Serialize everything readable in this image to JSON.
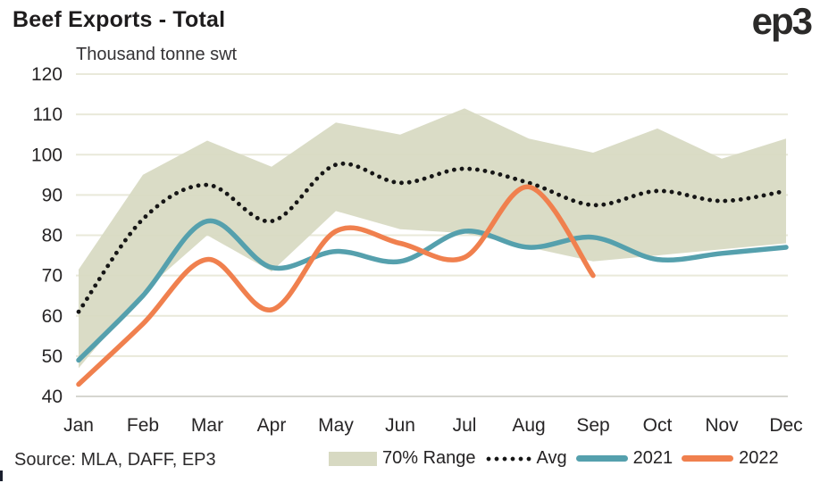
{
  "header": {
    "title": "Beef Exports - Total",
    "logo": "ep3"
  },
  "footer": {
    "source": "Source: MLA, DAFF, EP3"
  },
  "chart_data": {
    "type": "line",
    "title": "Beef Exports - Total",
    "unit_label": "Thousand tonne swt",
    "categories": [
      "Jan",
      "Feb",
      "Mar",
      "Apr",
      "May",
      "Jun",
      "Jul",
      "Aug",
      "Sep",
      "Oct",
      "Nov",
      "Dec"
    ],
    "ylim": [
      40,
      120
    ],
    "yticks": [
      40,
      50,
      60,
      70,
      80,
      90,
      100,
      110,
      120
    ],
    "grid": "horizontal",
    "legend_position": "bottom",
    "colors": {
      "band": "#d7d9c2",
      "avg": "#161616",
      "y2021": "#55a0ad",
      "y2022": "#f0804e",
      "gridline": "#e9e9da",
      "baseline": "#d6d6d0"
    },
    "band": {
      "name": "70% Range",
      "upper": [
        71.5,
        95,
        103.5,
        97,
        108,
        105,
        111.5,
        104,
        100.5,
        106.5,
        99,
        104
      ],
      "lower": [
        47,
        66,
        80,
        71,
        86,
        81.5,
        80.5,
        77,
        73.5,
        75,
        76.5,
        78
      ]
    },
    "series": [
      {
        "name": "Avg",
        "style": "dotted",
        "values": [
          61,
          84,
          92.5,
          83.5,
          97.5,
          93,
          96.5,
          93,
          87.5,
          91,
          88.5,
          91
        ]
      },
      {
        "name": "2021",
        "style": "solid",
        "values": [
          49,
          65,
          83.5,
          72,
          76,
          73.5,
          81,
          77,
          79.5,
          74,
          75.5,
          77
        ]
      },
      {
        "name": "2022",
        "style": "solid",
        "values": [
          43,
          58,
          74,
          61.5,
          81,
          78,
          74.5,
          92,
          70
        ]
      }
    ]
  }
}
